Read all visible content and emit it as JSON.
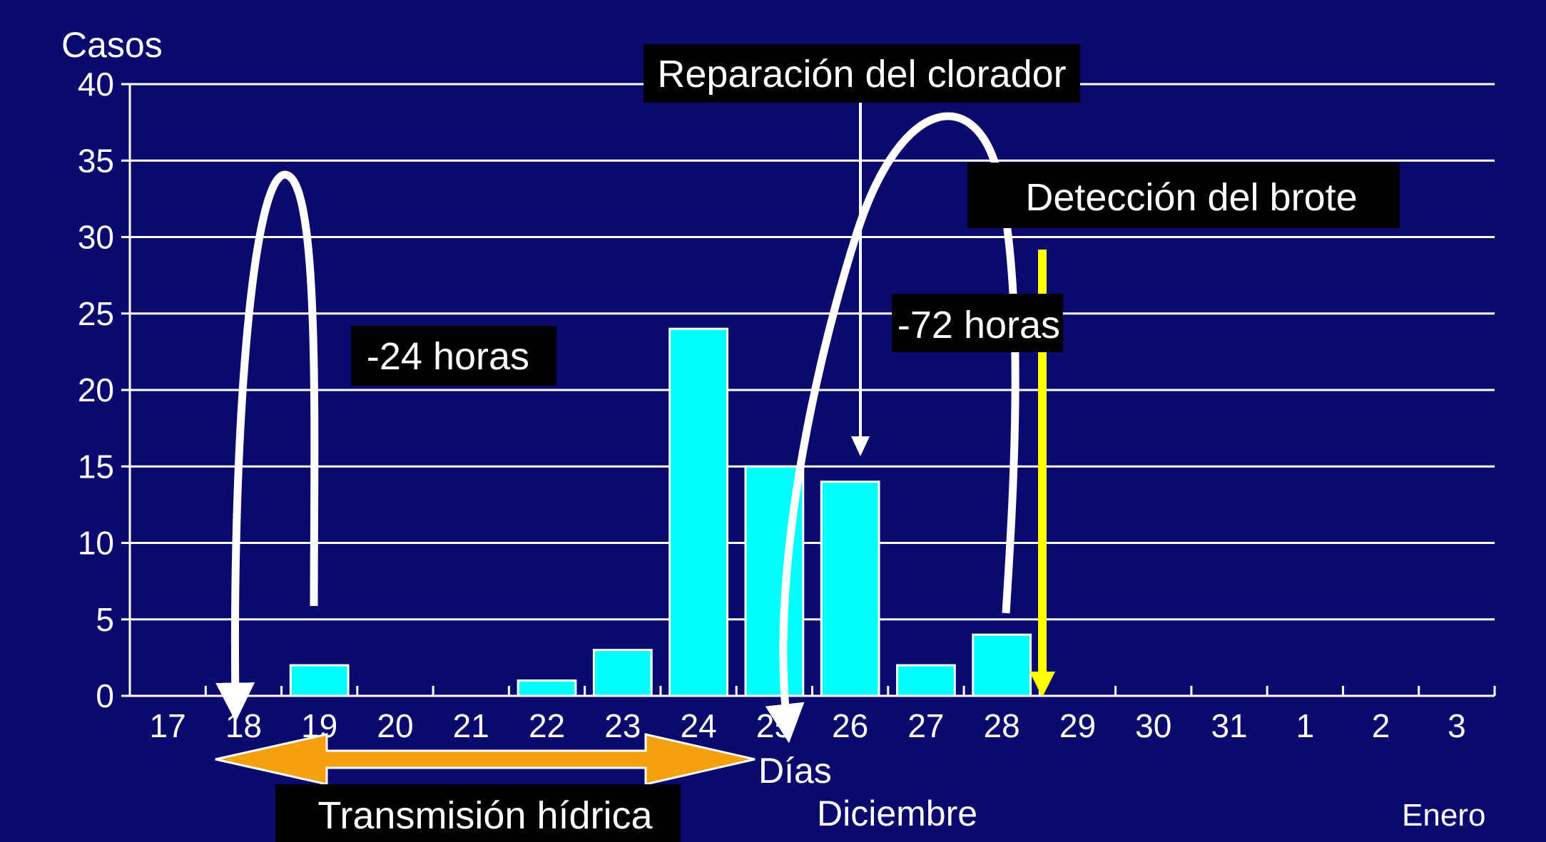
{
  "chart_data": {
    "type": "bar",
    "ylabel": "Casos",
    "xlabel": "Días",
    "ylim": [
      0,
      40
    ],
    "y_ticks": [
      0,
      5,
      10,
      15,
      20,
      25,
      30,
      35,
      40
    ],
    "categories": [
      "17",
      "18",
      "19",
      "20",
      "21",
      "22",
      "23",
      "24",
      "25",
      "26",
      "27",
      "28",
      "29",
      "30",
      "31",
      "1",
      "2",
      "3"
    ],
    "values": [
      0,
      0,
      2,
      0,
      0,
      1,
      3,
      24,
      15,
      14,
      2,
      4,
      0,
      0,
      0,
      0,
      0,
      0
    ],
    "month_labels": {
      "first": "Diciembre",
      "second": "Enero"
    },
    "grid": true,
    "colors": {
      "background": "#0a0a6e",
      "bar": "#00ffff",
      "marker": "#ffff00",
      "arrow": "#ffffff",
      "range_arrow": "#f5a00f"
    }
  },
  "annotations": {
    "reparacion": "Reparación del clorador",
    "deteccion": "Detección del brote",
    "horas_24": "-24 horas",
    "horas_72": "-72 horas",
    "transmision": "Transmisión hídrica"
  }
}
